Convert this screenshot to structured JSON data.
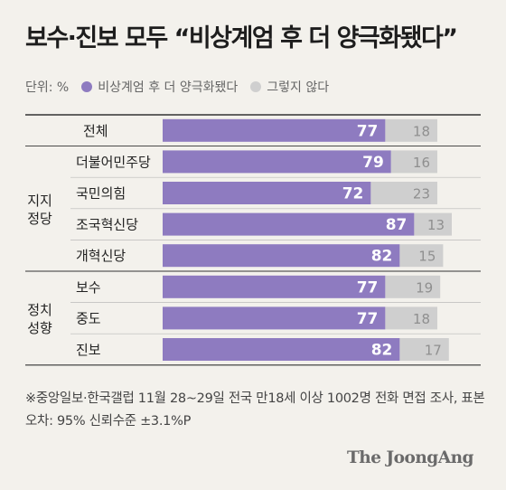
{
  "title": "보수·진보 모두 “비상계엄 후 더 양극화됐다”",
  "legend": {
    "unit": "단위: %",
    "series_a": "비상계엄 후 더 양극화됐다",
    "series_b": "그렇지 않다"
  },
  "colors": {
    "series_a": "#8e7bc0",
    "series_b": "#cfcfcf"
  },
  "groups": [
    {
      "label_lines": [
        "지지",
        "정당"
      ]
    },
    {
      "label_lines": [
        "정치",
        "성향"
      ]
    }
  ],
  "chart_data": {
    "type": "bar",
    "stacked": true,
    "orientation": "horizontal",
    "categories": [
      "전체",
      "더불어민주당",
      "국민의힘",
      "조국혁신당",
      "개혁신당",
      "보수",
      "중도",
      "진보"
    ],
    "series": [
      {
        "name": "비상계엄 후 더 양극화됐다",
        "values": [
          77,
          79,
          72,
          87,
          82,
          77,
          77,
          82
        ]
      },
      {
        "name": "그렇지 않다",
        "values": [
          18,
          16,
          23,
          13,
          15,
          19,
          18,
          17
        ]
      }
    ],
    "xlim": [
      0,
      100
    ]
  },
  "footnote": "※중앙일보·한국갤럽 11월 28~29일 전국 만18세 이상 1002명 전화 면접 조사, 표본오차: 95% 신뢰수준 ±3.1%P",
  "brand": "The JoongAng"
}
